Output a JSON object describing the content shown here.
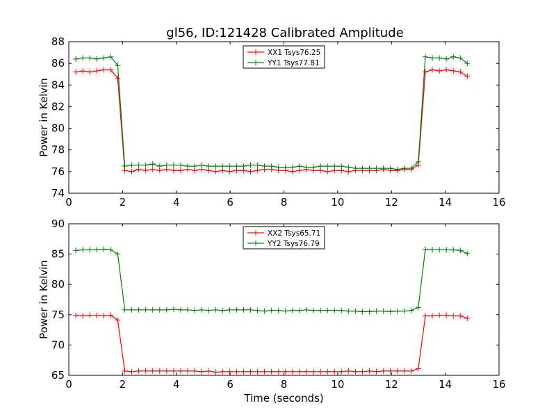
{
  "title": "gl56, ID:121428 Calibrated Amplitude",
  "chart_data": [
    {
      "type": "line",
      "title": "gl56, ID:121428 Calibrated Amplitude",
      "xlabel": "",
      "ylabel": "Power in Kelvin",
      "xlim": [
        0,
        16
      ],
      "ylim": [
        74,
        88
      ],
      "xticks": [
        "0",
        "2",
        "4",
        "6",
        "8",
        "10",
        "12",
        "14",
        "16"
      ],
      "yticks": [
        "74",
        "76",
        "78",
        "80",
        "82",
        "84",
        "86",
        "88"
      ],
      "legend_position": "top-center",
      "x": [
        0.26,
        0.52,
        0.78,
        1.04,
        1.3,
        1.56,
        1.82,
        2.08,
        2.34,
        2.6,
        2.86,
        3.12,
        3.38,
        3.64,
        3.9,
        4.16,
        4.42,
        4.68,
        4.94,
        5.2,
        5.46,
        5.72,
        5.98,
        6.24,
        6.5,
        6.76,
        7.02,
        7.28,
        7.54,
        7.8,
        8.06,
        8.32,
        8.58,
        8.84,
        9.1,
        9.36,
        9.62,
        9.88,
        10.14,
        10.4,
        10.66,
        10.92,
        11.18,
        11.44,
        11.7,
        11.96,
        12.22,
        12.48,
        12.74,
        13.0,
        13.26,
        13.52,
        13.78,
        14.04,
        14.3,
        14.56,
        14.82
      ],
      "series": [
        {
          "name": "XX1 Tsys76.25",
          "color": "#ff0000",
          "values": [
            85.2,
            85.3,
            85.2,
            85.3,
            85.4,
            85.4,
            84.6,
            76.1,
            76.0,
            76.2,
            76.1,
            76.2,
            76.1,
            76.2,
            76.1,
            76.1,
            76.2,
            76.1,
            76.2,
            76.1,
            76.0,
            76.1,
            76.0,
            76.1,
            76.1,
            76.0,
            76.1,
            76.2,
            76.2,
            76.1,
            76.1,
            76.0,
            76.1,
            76.2,
            76.1,
            76.1,
            76.0,
            76.1,
            76.1,
            76.0,
            76.1,
            76.1,
            76.1,
            76.1,
            76.2,
            76.1,
            76.1,
            76.2,
            76.2,
            76.6,
            85.2,
            85.4,
            85.3,
            85.4,
            85.3,
            85.2,
            84.8
          ]
        },
        {
          "name": "YY1 Tsys77.81",
          "color": "#008000",
          "values": [
            86.4,
            86.5,
            86.5,
            86.4,
            86.5,
            86.6,
            85.8,
            76.5,
            76.6,
            76.6,
            76.6,
            76.7,
            76.5,
            76.6,
            76.6,
            76.6,
            76.5,
            76.5,
            76.6,
            76.5,
            76.5,
            76.5,
            76.5,
            76.5,
            76.5,
            76.6,
            76.6,
            76.5,
            76.5,
            76.4,
            76.4,
            76.4,
            76.5,
            76.4,
            76.4,
            76.5,
            76.5,
            76.5,
            76.5,
            76.4,
            76.3,
            76.3,
            76.3,
            76.3,
            76.3,
            76.3,
            76.2,
            76.3,
            76.3,
            76.9,
            86.6,
            86.5,
            86.5,
            86.4,
            86.6,
            86.5,
            86.0
          ]
        }
      ]
    },
    {
      "type": "line",
      "title": "",
      "xlabel": "Time (seconds)",
      "ylabel": "Power in Kelvin",
      "xlim": [
        0,
        16
      ],
      "ylim": [
        65,
        90
      ],
      "xticks": [
        "0",
        "2",
        "4",
        "6",
        "8",
        "10",
        "12",
        "14",
        "16"
      ],
      "yticks": [
        "65",
        "70",
        "75",
        "80",
        "85",
        "90"
      ],
      "legend_position": "top-center",
      "x": [
        0.26,
        0.52,
        0.78,
        1.04,
        1.3,
        1.56,
        1.82,
        2.08,
        2.34,
        2.6,
        2.86,
        3.12,
        3.38,
        3.64,
        3.9,
        4.16,
        4.42,
        4.68,
        4.94,
        5.2,
        5.46,
        5.72,
        5.98,
        6.24,
        6.5,
        6.76,
        7.02,
        7.28,
        7.54,
        7.8,
        8.06,
        8.32,
        8.58,
        8.84,
        9.1,
        9.36,
        9.62,
        9.88,
        10.14,
        10.4,
        10.66,
        10.92,
        11.18,
        11.44,
        11.7,
        11.96,
        12.22,
        12.48,
        12.74,
        13.0,
        13.26,
        13.52,
        13.78,
        14.04,
        14.3,
        14.56,
        14.82
      ],
      "series": [
        {
          "name": "XX2 Tsys65.71",
          "color": "#ff0000",
          "values": [
            74.9,
            74.8,
            74.9,
            74.9,
            74.8,
            74.9,
            74.1,
            65.7,
            65.6,
            65.7,
            65.7,
            65.7,
            65.7,
            65.7,
            65.7,
            65.7,
            65.7,
            65.7,
            65.6,
            65.7,
            65.5,
            65.6,
            65.6,
            65.6,
            65.6,
            65.6,
            65.6,
            65.6,
            65.6,
            65.6,
            65.6,
            65.6,
            65.6,
            65.6,
            65.6,
            65.6,
            65.6,
            65.6,
            65.6,
            65.7,
            65.6,
            65.6,
            65.7,
            65.6,
            65.7,
            65.7,
            65.7,
            65.7,
            65.7,
            66.1,
            74.8,
            74.8,
            74.9,
            74.9,
            74.8,
            74.8,
            74.4
          ]
        },
        {
          "name": "YY2 Tsys76.79",
          "color": "#008000",
          "values": [
            85.6,
            85.7,
            85.7,
            85.7,
            85.8,
            85.7,
            85.0,
            75.8,
            75.8,
            75.8,
            75.8,
            75.8,
            75.8,
            75.8,
            75.9,
            75.8,
            75.8,
            75.7,
            75.8,
            75.7,
            75.8,
            75.7,
            75.8,
            75.8,
            75.8,
            75.8,
            75.7,
            75.6,
            75.7,
            75.7,
            75.6,
            75.7,
            75.7,
            75.8,
            75.7,
            75.7,
            75.7,
            75.7,
            75.7,
            75.6,
            75.6,
            75.5,
            75.5,
            75.6,
            75.6,
            75.5,
            75.6,
            75.6,
            75.7,
            76.2,
            85.8,
            85.7,
            85.7,
            85.7,
            85.7,
            85.6,
            85.1
          ]
        }
      ]
    }
  ]
}
